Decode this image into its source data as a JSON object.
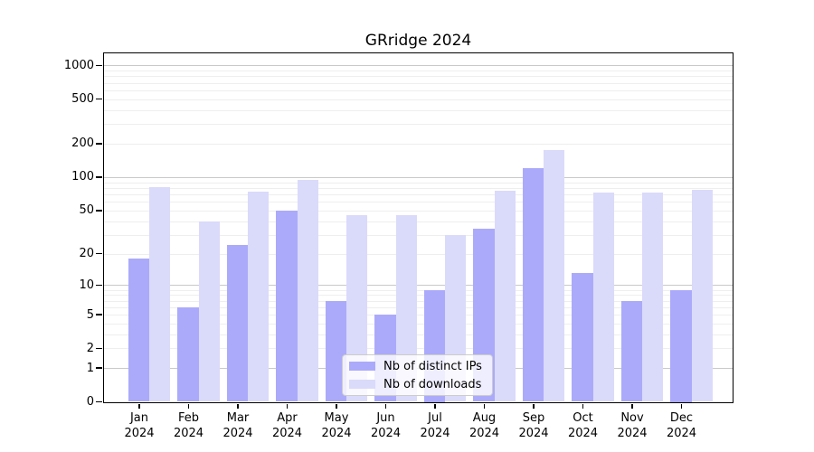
{
  "title": "GRridge 2024",
  "legend": {
    "items": [
      {
        "label": "Nb of distinct IPs",
        "color": "#abaafa"
      },
      {
        "label": "Nb of downloads",
        "color": "#dadafb"
      }
    ]
  },
  "chart_data": {
    "type": "bar",
    "title": "GRridge 2024",
    "xlabel": "",
    "ylabel": "",
    "yscale": "log1p",
    "ylim": [
      0,
      1280
    ],
    "yticks": [
      0,
      1,
      2,
      5,
      10,
      20,
      50,
      100,
      200,
      500,
      1000
    ],
    "grid": true,
    "legend_position": "lower center",
    "categories": [
      "Jan 2024",
      "Feb 2024",
      "Mar 2024",
      "Apr 2024",
      "May 2024",
      "Jun 2024",
      "Jul 2024",
      "Aug 2024",
      "Sep 2024",
      "Oct 2024",
      "Nov 2024",
      "Dec 2024"
    ],
    "series": [
      {
        "name": "Nb of distinct IPs",
        "color": "#abaafa",
        "values": [
          18,
          6,
          24,
          50,
          7,
          5,
          9,
          34,
          120,
          13,
          7,
          9
        ]
      },
      {
        "name": "Nb of downloads",
        "color": "#dadafb",
        "values": [
          82,
          40,
          74,
          95,
          45,
          45,
          30,
          76,
          175,
          73,
          72,
          77
        ]
      }
    ]
  },
  "colors": {
    "major_grid": "#c9c9c9",
    "minor_grid": "#eeeeee",
    "axis": "#000000",
    "background": "#ffffff"
  }
}
